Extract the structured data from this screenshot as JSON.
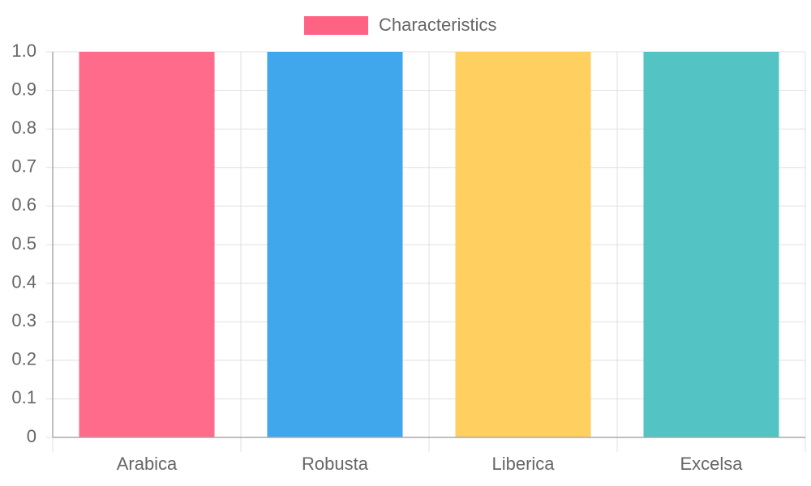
{
  "chart_data": {
    "type": "bar",
    "categories": [
      "Arabica",
      "Robusta",
      "Liberica",
      "Excelsa"
    ],
    "series": [
      {
        "name": "Characteristics",
        "colors": [
          "#ff6384",
          "#36a2eb",
          "#ffcd56",
          "#4bc0c0"
        ],
        "values": [
          1,
          1,
          1,
          1
        ]
      }
    ],
    "ylim": [
      0,
      1
    ],
    "yticks": [
      0,
      0.1,
      0.2,
      0.3,
      0.4,
      0.5,
      0.6,
      0.7,
      0.8,
      0.9,
      {
        "value": 1,
        "label": "1.0"
      }
    ],
    "grid": true,
    "legend": "top"
  }
}
